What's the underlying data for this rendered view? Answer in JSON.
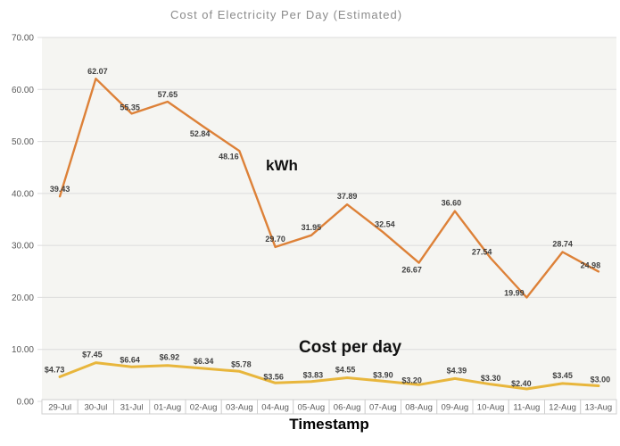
{
  "chart": {
    "title": "Cost of Electricity Per Day (Estimated)",
    "x_axis_title": "Timestamp"
  },
  "chart_data": {
    "type": "line",
    "title": "Cost of Electricity Per Day (Estimated)",
    "xlabel": "Timestamp",
    "ylabel": "",
    "ylim": [
      0,
      70
    ],
    "ytick_step": 10,
    "ytick_labels": [
      "0.00",
      "10.00",
      "20.00",
      "30.00",
      "40.00",
      "50.00",
      "60.00",
      "70.00"
    ],
    "grid": true,
    "legend_position": "inline-annotations",
    "categories": [
      "29-Jul",
      "30-Jul",
      "31-Jul",
      "01-Aug",
      "02-Aug",
      "03-Aug",
      "04-Aug",
      "05-Aug",
      "06-Aug",
      "07-Aug",
      "08-Aug",
      "09-Aug",
      "10-Aug",
      "11-Aug",
      "12-Aug",
      "13-Aug"
    ],
    "series": [
      {
        "name": "kWh",
        "color": "#dd8138",
        "label_prefix": "",
        "values": [
          39.43,
          62.07,
          55.35,
          57.65,
          52.84,
          48.16,
          29.7,
          31.95,
          37.89,
          32.54,
          26.67,
          36.6,
          27.54,
          19.99,
          28.74,
          24.98
        ]
      },
      {
        "name": "Cost per day",
        "color": "#e8b63c",
        "label_prefix": "$",
        "values": [
          4.73,
          7.45,
          6.64,
          6.92,
          6.34,
          5.78,
          3.56,
          3.83,
          4.55,
          3.9,
          3.2,
          4.39,
          3.3,
          2.4,
          3.45,
          3.0
        ]
      }
    ],
    "colors": {
      "title_text": "#8b8b8b",
      "axis_text": "#595959",
      "gridline": "#dcdcdc",
      "plot_background": "#f5f5f2",
      "data_label_text": "#404040",
      "category_box_border": "#cfcfcf",
      "category_box_fill": "#ffffff"
    }
  }
}
